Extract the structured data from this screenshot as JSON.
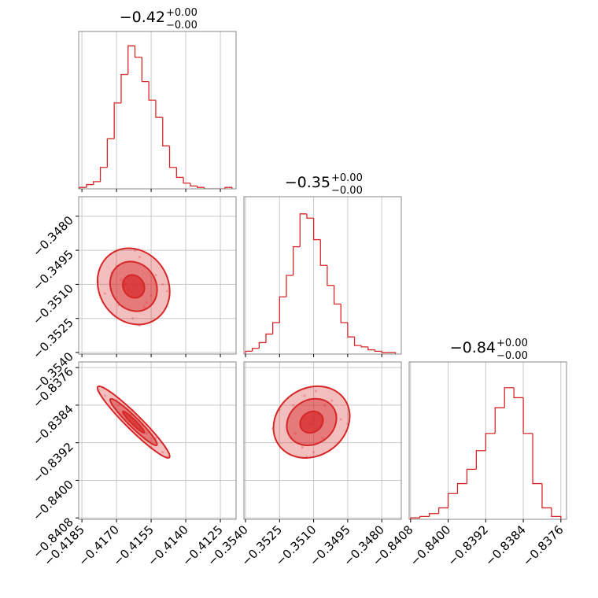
{
  "chart_data": {
    "type": "corner",
    "color": "#d62728",
    "grid": true,
    "parameters": [
      {
        "title": "−0.42",
        "title_upper": "+0.00",
        "title_lower": "−0.00",
        "xlim": [
          -0.41864,
          -0.41182
        ],
        "xticks": [
          {
            "value": -0.4185,
            "label": "−0.4185"
          },
          {
            "value": -0.417,
            "label": "−0.4170"
          },
          {
            "value": -0.4155,
            "label": "−0.4155"
          },
          {
            "value": -0.414,
            "label": "−0.4140"
          },
          {
            "value": -0.4125,
            "label": "−0.4125"
          }
        ],
        "bins": [
          -0.4186,
          -0.4183,
          -0.418,
          -0.4177,
          -0.4174,
          -0.4171,
          -0.4168,
          -0.4165,
          -0.4162,
          -0.4159,
          -0.4156,
          -0.4153,
          -0.415,
          -0.4147,
          -0.4144,
          -0.4141,
          -0.4138,
          -0.4135,
          -0.4132,
          -0.4129,
          -0.4126,
          -0.4123,
          -0.412
        ],
        "counts": [
          1,
          3,
          5,
          15,
          35,
          60,
          80,
          100,
          92,
          75,
          62,
          50,
          30,
          15,
          8,
          4,
          2,
          1,
          0,
          0,
          0,
          1
        ],
        "ylim": [
          0,
          110
        ]
      },
      {
        "title": "−0.35",
        "title_upper": "+0.00",
        "title_lower": "−0.00",
        "xlim": [
          -0.35407,
          -0.34714
        ],
        "xticks": [
          {
            "value": -0.354,
            "label": "−0.3540"
          },
          {
            "value": -0.3525,
            "label": "−0.3525"
          },
          {
            "value": -0.351,
            "label": "−0.3510"
          },
          {
            "value": -0.3495,
            "label": "−0.3495"
          },
          {
            "value": -0.348,
            "label": "−0.3480"
          }
        ],
        "bins": [
          -0.354,
          -0.3537,
          -0.3534,
          -0.3531,
          -0.3528,
          -0.3525,
          -0.3522,
          -0.3519,
          -0.3516,
          -0.3513,
          -0.351,
          -0.3507,
          -0.3504,
          -0.3501,
          -0.3498,
          -0.3495,
          -0.3492,
          -0.3489,
          -0.3486,
          -0.3483,
          -0.348,
          -0.3477,
          -0.3474
        ],
        "counts": [
          2,
          4,
          8,
          14,
          22,
          40,
          55,
          75,
          98,
          95,
          80,
          62,
          48,
          35,
          22,
          12,
          6,
          5,
          3,
          2,
          1,
          1
        ],
        "ylim": [
          0,
          110
        ]
      },
      {
        "title": "−0.84",
        "title_upper": "+0.00",
        "title_lower": "−0.00",
        "xlim": [
          -0.84083,
          -0.83748
        ],
        "xticks": [
          {
            "value": -0.8408,
            "label": "−0.8408"
          },
          {
            "value": -0.84,
            "label": "−0.8400"
          },
          {
            "value": -0.8392,
            "label": "−0.8392"
          },
          {
            "value": -0.8384,
            "label": "−0.8384"
          },
          {
            "value": -0.8376,
            "label": "−0.8376"
          }
        ],
        "bins": [
          -0.8408,
          -0.8406,
          -0.8404,
          -0.8402,
          -0.84,
          -0.8398,
          -0.8396,
          -0.8394,
          -0.8392,
          -0.839,
          -0.8388,
          -0.8386,
          -0.8384,
          -0.8382,
          -0.838,
          -0.8378,
          -0.8376
        ],
        "counts": [
          1,
          2,
          4,
          8,
          18,
          25,
          35,
          48,
          60,
          78,
          92,
          85,
          60,
          25,
          8,
          2
        ],
        "ylim": [
          0,
          110
        ]
      }
    ],
    "samples": [
      [
        -0.4172,
        -0.4165,
        -0.416,
        -0.4158,
        -0.4168,
        -0.4155,
        -0.4163,
        -0.417,
        -0.415,
        -0.4175,
        -0.4162,
        -0.4157,
        -0.4166,
        -0.4153,
        -0.4178,
        -0.416,
        -0.4148,
        -0.4169,
        -0.4164,
        -0.4159
      ],
      [
        -0.3505,
        -0.3512,
        -0.3498,
        -0.352,
        -0.3508,
        -0.3515,
        -0.3525,
        -0.3502,
        -0.351,
        -0.3514,
        -0.3495,
        -0.3518,
        -0.351,
        -0.3506,
        -0.3509,
        -0.3528,
        -0.3513,
        -0.3519,
        -0.35,
        -0.3511
      ],
      [
        -0.8384,
        -0.8388,
        -0.8387,
        -0.8391,
        -0.8386,
        -0.8393,
        -0.8385,
        -0.8383,
        -0.8394,
        -0.8382,
        -0.8388,
        -0.839,
        -0.8387,
        -0.8391,
        -0.8381,
        -0.8389,
        -0.8395,
        -0.8384,
        -0.8386,
        -0.8388
      ]
    ]
  }
}
